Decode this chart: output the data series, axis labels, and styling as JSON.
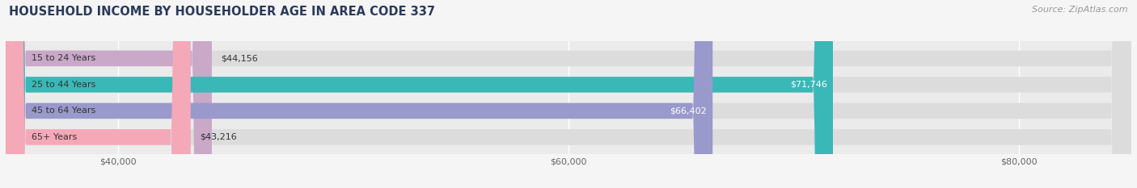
{
  "title": "HOUSEHOLD INCOME BY HOUSEHOLDER AGE IN AREA CODE 337",
  "source": "Source: ZipAtlas.com",
  "categories": [
    "15 to 24 Years",
    "25 to 44 Years",
    "45 to 64 Years",
    "65+ Years"
  ],
  "values": [
    44156,
    71746,
    66402,
    43216
  ],
  "bar_colors": [
    "#c9a8c8",
    "#3ab8b8",
    "#9999cc",
    "#f4a8b8"
  ],
  "bar_labels": [
    "$44,156",
    "$71,746",
    "$66,402",
    "$43,216"
  ],
  "label_inside": [
    false,
    true,
    true,
    false
  ],
  "label_text_colors_inside": [
    "#333333",
    "#ffffff",
    "#ffffff",
    "#333333"
  ],
  "xmin": 35000,
  "xmax": 85000,
  "xticks": [
    40000,
    60000,
    80000
  ],
  "xtick_labels": [
    "$40,000",
    "$60,000",
    "$80,000"
  ],
  "fig_bg_color": "#f5f5f5",
  "ax_bg_color": "#ebebeb",
  "bar_bg_color": "#dcdcdc",
  "title_color": "#2a3a5c",
  "source_color": "#999999",
  "title_fontsize": 10.5,
  "source_fontsize": 8,
  "tick_fontsize": 8,
  "bar_label_fontsize": 8,
  "cat_label_fontsize": 8,
  "bar_height": 0.6
}
